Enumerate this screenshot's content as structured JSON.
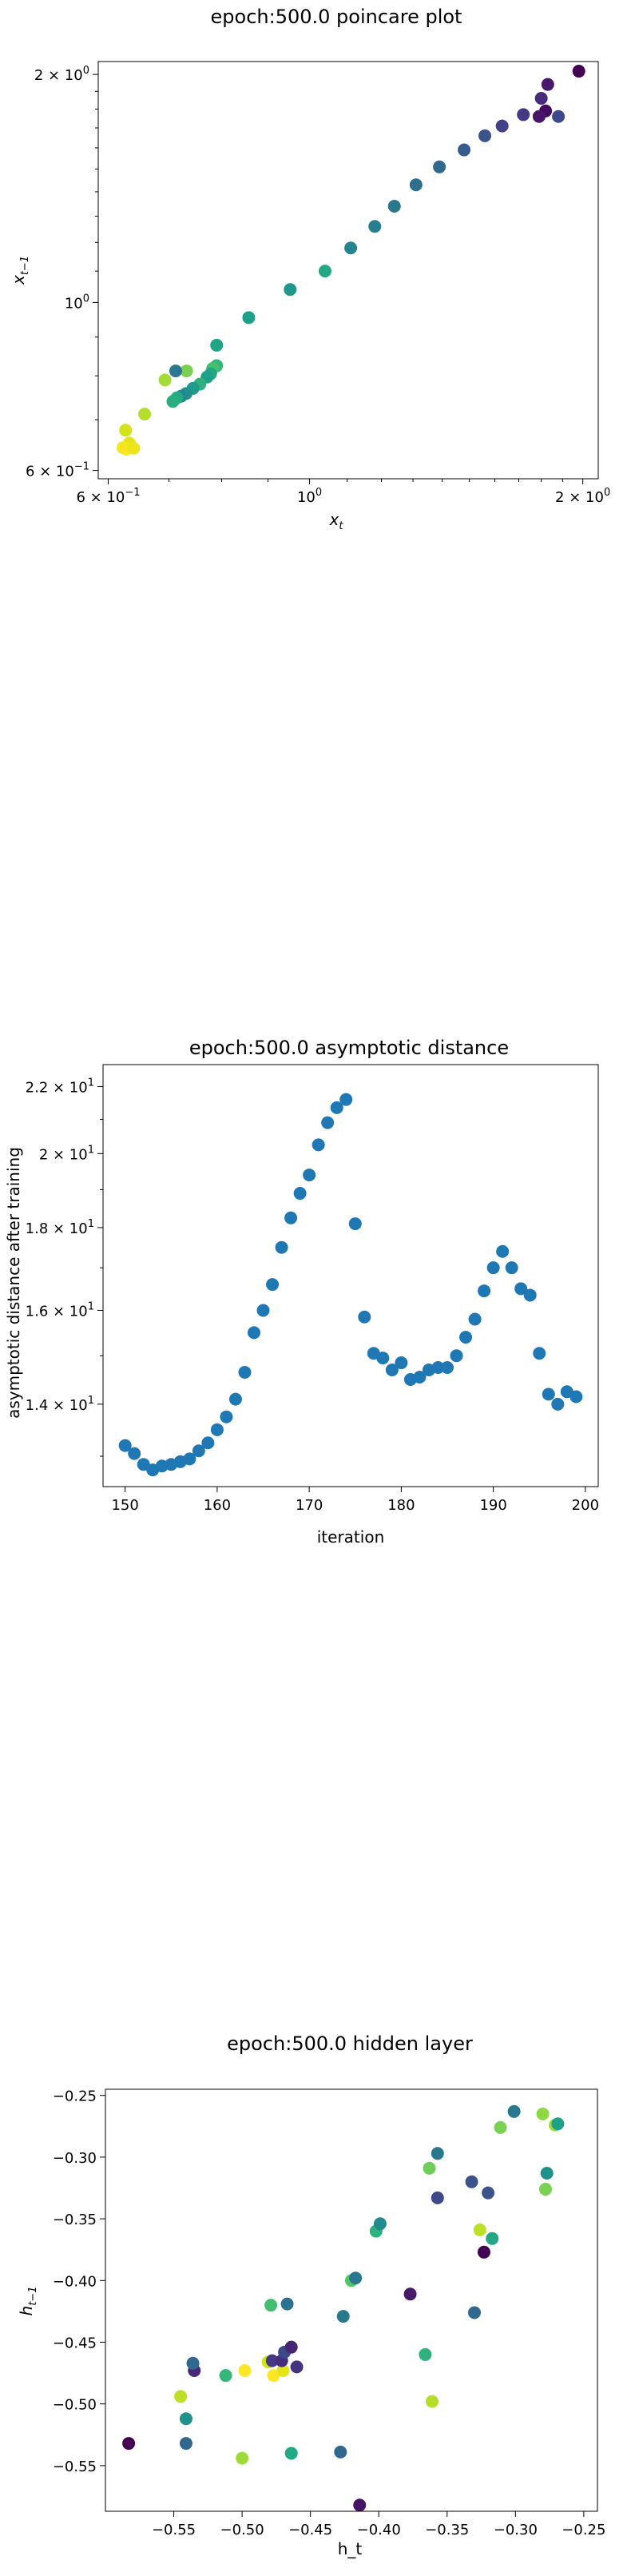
{
  "chart_data": [
    {
      "type": "scatter",
      "title": "epoch:500.0 poincare plot",
      "xlabel": "x_t",
      "ylabel": "x_{t-1}",
      "xscale": "log",
      "yscale": "log",
      "xlim": [
        0.585,
        2.08
      ],
      "ylim": [
        0.585,
        2.08
      ],
      "xticks": [
        {
          "v": 0.6,
          "base": "6 × 10",
          "exp": "−1"
        },
        {
          "v": 1.0,
          "base": "10",
          "exp": "0"
        },
        {
          "v": 2.0,
          "base": "2 × 10",
          "exp": "0"
        }
      ],
      "yticks": [
        {
          "v": 0.6,
          "base": "6 × 10",
          "exp": "−1"
        },
        {
          "v": 1.0,
          "base": "10",
          "exp": "0"
        },
        {
          "v": 2.0,
          "base": "2 × 10",
          "exp": "0"
        }
      ],
      "colormap": "viridis (dark purple for high values, yellow for low values)",
      "points": [
        {
          "x": 1.98,
          "y": 2.02,
          "c": "#440154"
        },
        {
          "x": 1.83,
          "y": 1.94,
          "c": "#48186a"
        },
        {
          "x": 1.8,
          "y": 1.86,
          "c": "#472c7a"
        },
        {
          "x": 1.82,
          "y": 1.79,
          "c": "#450a61"
        },
        {
          "x": 1.79,
          "y": 1.76,
          "c": "#481467"
        },
        {
          "x": 1.88,
          "y": 1.76,
          "c": "#3e4989"
        },
        {
          "x": 1.72,
          "y": 1.77,
          "c": "#443983"
        },
        {
          "x": 1.63,
          "y": 1.71,
          "c": "#424086"
        },
        {
          "x": 1.56,
          "y": 1.66,
          "c": "#3b528b"
        },
        {
          "x": 1.48,
          "y": 1.59,
          "c": "#375b8d"
        },
        {
          "x": 1.39,
          "y": 1.51,
          "c": "#31688e"
        },
        {
          "x": 1.31,
          "y": 1.43,
          "c": "#2d708e"
        },
        {
          "x": 1.24,
          "y": 1.34,
          "c": "#2a788e"
        },
        {
          "x": 1.18,
          "y": 1.26,
          "c": "#277f8e"
        },
        {
          "x": 1.11,
          "y": 1.18,
          "c": "#25848e"
        },
        {
          "x": 1.04,
          "y": 1.1,
          "c": "#22a884"
        },
        {
          "x": 0.952,
          "y": 1.04,
          "c": "#1f988b"
        },
        {
          "x": 0.857,
          "y": 0.955,
          "c": "#1f9e89"
        },
        {
          "x": 0.79,
          "y": 0.878,
          "c": "#20a486"
        },
        {
          "x": 0.79,
          "y": 0.825,
          "c": "#35b779"
        },
        {
          "x": 0.782,
          "y": 0.818,
          "c": "#44bf70"
        },
        {
          "x": 0.778,
          "y": 0.805,
          "c": "#22a785"
        },
        {
          "x": 0.771,
          "y": 0.797,
          "c": "#1fa188"
        },
        {
          "x": 0.757,
          "y": 0.78,
          "c": "#2db27d"
        },
        {
          "x": 0.744,
          "y": 0.77,
          "c": "#1e9b8a"
        },
        {
          "x": 0.731,
          "y": 0.758,
          "c": "#21918c"
        },
        {
          "x": 0.722,
          "y": 0.752,
          "c": "#23898e"
        },
        {
          "x": 0.714,
          "y": 0.748,
          "c": "#25ab82"
        },
        {
          "x": 0.707,
          "y": 0.74,
          "c": "#29af7f"
        },
        {
          "x": 0.732,
          "y": 0.812,
          "c": "#7ad151"
        },
        {
          "x": 0.712,
          "y": 0.812,
          "c": "#2a788e"
        },
        {
          "x": 0.693,
          "y": 0.79,
          "c": "#a5db36"
        },
        {
          "x": 0.658,
          "y": 0.712,
          "c": "#b5de2b"
        },
        {
          "x": 0.627,
          "y": 0.678,
          "c": "#d2e21b"
        },
        {
          "x": 0.633,
          "y": 0.652,
          "c": "#e5e419"
        },
        {
          "x": 0.628,
          "y": 0.64,
          "c": "#fde725"
        },
        {
          "x": 0.623,
          "y": 0.643,
          "c": "#f6e620"
        },
        {
          "x": 0.64,
          "y": 0.642,
          "c": "#ece51b"
        }
      ]
    },
    {
      "type": "scatter",
      "title": "epoch:500.0 asymptotic distance",
      "xlabel": "iteration",
      "ylabel": "asymptotic distance after training",
      "yscale": "log",
      "xlim": [
        147.6,
        201.4
      ],
      "ylim": [
        12.45,
        22.7
      ],
      "xticks": [
        150,
        160,
        170,
        180,
        190,
        200
      ],
      "yticks": [
        {
          "v": 14,
          "base": "1.4 × 10",
          "exp": "1"
        },
        {
          "v": 16,
          "base": "1.6 × 10",
          "exp": "1"
        },
        {
          "v": 18,
          "base": "1.8 × 10",
          "exp": "1"
        },
        {
          "v": 20,
          "base": "2 × 10",
          "exp": "1"
        },
        {
          "v": 22,
          "base": "2.2 × 10",
          "exp": "1"
        }
      ],
      "color": "#1f77b4",
      "x": [
        150,
        151,
        152,
        153,
        154,
        155,
        156,
        157,
        158,
        159,
        160,
        161,
        162,
        163,
        164,
        165,
        166,
        167,
        168,
        169,
        170,
        171,
        172,
        173,
        174,
        175,
        176,
        177,
        178,
        179,
        180,
        181,
        182,
        183,
        184,
        185,
        186,
        187,
        188,
        189,
        190,
        191,
        192,
        193,
        194,
        195,
        196,
        197,
        198,
        199
      ],
      "y": [
        13.2,
        13.05,
        12.85,
        12.75,
        12.82,
        12.85,
        12.9,
        12.95,
        13.1,
        13.25,
        13.5,
        13.75,
        14.1,
        14.65,
        15.5,
        16.0,
        16.6,
        17.5,
        18.25,
        18.9,
        19.4,
        20.25,
        20.9,
        21.35,
        21.6,
        18.1,
        15.85,
        15.05,
        14.95,
        14.7,
        14.85,
        14.5,
        14.55,
        14.7,
        14.75,
        14.75,
        15.0,
        15.4,
        15.8,
        16.45,
        17.0,
        17.4,
        17.0,
        16.5,
        16.35,
        15.05,
        14.2,
        14.0,
        14.25,
        14.15
      ]
    },
    {
      "type": "scatter",
      "title": "epoch:500.0 hidden layer",
      "xlabel": "h_t",
      "ylabel": "h_{t-1}",
      "xlim": [
        -0.6,
        -0.24
      ],
      "ylim": [
        -0.587,
        -0.245
      ],
      "xticks": [
        -0.55,
        -0.5,
        -0.45,
        -0.4,
        -0.35,
        -0.3,
        -0.25
      ],
      "yticks": [
        -0.55,
        -0.5,
        -0.45,
        -0.4,
        -0.35,
        -0.3,
        -0.25
      ],
      "xtick_labels": [
        "−0.55",
        "−0.50",
        "−0.45",
        "−0.40",
        "−0.35",
        "−0.30",
        "−0.25"
      ],
      "ytick_labels": [
        "−0.55",
        "−0.50",
        "−0.45",
        "−0.40",
        "−0.35",
        "−0.30",
        "−0.25"
      ],
      "points": [
        {
          "x": -0.583,
          "y": -0.532,
          "c": "#440154"
        },
        {
          "x": -0.541,
          "y": -0.532,
          "c": "#31688e"
        },
        {
          "x": -0.541,
          "y": -0.512,
          "c": "#21918c"
        },
        {
          "x": -0.545,
          "y": -0.494,
          "c": "#bddf26"
        },
        {
          "x": -0.535,
          "y": -0.473,
          "c": "#482878"
        },
        {
          "x": -0.536,
          "y": -0.467,
          "c": "#31688e"
        },
        {
          "x": -0.512,
          "y": -0.477,
          "c": "#35b779"
        },
        {
          "x": -0.498,
          "y": -0.473,
          "c": "#fde725"
        },
        {
          "x": -0.481,
          "y": -0.466,
          "c": "#d2e21b"
        },
        {
          "x": -0.477,
          "y": -0.477,
          "c": "#fde725"
        },
        {
          "x": -0.47,
          "y": -0.473,
          "c": "#e5e419"
        },
        {
          "x": -0.478,
          "y": -0.465,
          "c": "#443a83"
        },
        {
          "x": -0.471,
          "y": -0.465,
          "c": "#472d7b"
        },
        {
          "x": -0.469,
          "y": -0.458,
          "c": "#3e4989"
        },
        {
          "x": -0.464,
          "y": -0.454,
          "c": "#482475"
        },
        {
          "x": -0.46,
          "y": -0.47,
          "c": "#46327e"
        },
        {
          "x": -0.479,
          "y": -0.42,
          "c": "#44bf70"
        },
        {
          "x": -0.467,
          "y": -0.419,
          "c": "#2c728e"
        },
        {
          "x": -0.5,
          "y": -0.544,
          "c": "#a0da39"
        },
        {
          "x": -0.464,
          "y": -0.54,
          "c": "#22a884"
        },
        {
          "x": -0.428,
          "y": -0.539,
          "c": "#31688e"
        },
        {
          "x": -0.414,
          "y": -0.582,
          "c": "#471365"
        },
        {
          "x": -0.42,
          "y": -0.4,
          "c": "#52c569"
        },
        {
          "x": -0.417,
          "y": -0.398,
          "c": "#2a788e"
        },
        {
          "x": -0.426,
          "y": -0.429,
          "c": "#2a788e"
        },
        {
          "x": -0.402,
          "y": -0.36,
          "c": "#2db27d"
        },
        {
          "x": -0.399,
          "y": -0.354,
          "c": "#238a8d"
        },
        {
          "x": -0.377,
          "y": -0.411,
          "c": "#481a6c"
        },
        {
          "x": -0.366,
          "y": -0.46,
          "c": "#2db27d"
        },
        {
          "x": -0.361,
          "y": -0.498,
          "c": "#b5de2b"
        },
        {
          "x": -0.363,
          "y": -0.309,
          "c": "#6ece58"
        },
        {
          "x": -0.357,
          "y": -0.297,
          "c": "#2a788e"
        },
        {
          "x": -0.357,
          "y": -0.333,
          "c": "#3e4989"
        },
        {
          "x": -0.332,
          "y": -0.32,
          "c": "#3b528b"
        },
        {
          "x": -0.33,
          "y": -0.426,
          "c": "#31688e"
        },
        {
          "x": -0.326,
          "y": -0.359,
          "c": "#bddf26"
        },
        {
          "x": -0.323,
          "y": -0.377,
          "c": "#440154"
        },
        {
          "x": -0.32,
          "y": -0.329,
          "c": "#3b528b"
        },
        {
          "x": -0.317,
          "y": -0.366,
          "c": "#22a884"
        },
        {
          "x": -0.311,
          "y": -0.276,
          "c": "#7ad151"
        },
        {
          "x": -0.301,
          "y": -0.263,
          "c": "#2a788e"
        },
        {
          "x": -0.28,
          "y": -0.265,
          "c": "#8fd744"
        },
        {
          "x": -0.278,
          "y": -0.326,
          "c": "#7ad151"
        },
        {
          "x": -0.277,
          "y": -0.313,
          "c": "#21918c"
        },
        {
          "x": -0.271,
          "y": -0.274,
          "c": "#a0da39"
        },
        {
          "x": -0.269,
          "y": -0.273,
          "c": "#1fa088"
        }
      ]
    }
  ]
}
